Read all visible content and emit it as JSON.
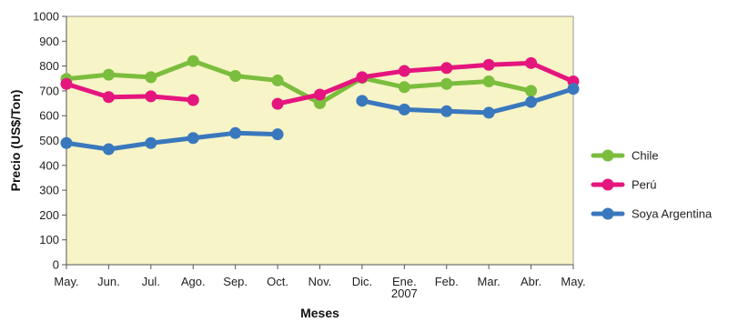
{
  "chart_data": {
    "type": "line",
    "xlabel": "Meses",
    "ylabel": "Precio (US$/Ton)",
    "ylim": [
      0,
      1000
    ],
    "ytick_step": 100,
    "grid": false,
    "plot_background": "#f7f4c7",
    "legend_position": "right",
    "categories": [
      {
        "label": "May.",
        "sub": ""
      },
      {
        "label": "Jun.",
        "sub": ""
      },
      {
        "label": "Jul.",
        "sub": ""
      },
      {
        "label": "Ago.",
        "sub": ""
      },
      {
        "label": "Sep.",
        "sub": ""
      },
      {
        "label": "Oct.",
        "sub": ""
      },
      {
        "label": "Nov.",
        "sub": ""
      },
      {
        "label": "Dic.",
        "sub": ""
      },
      {
        "label": "Ene.",
        "sub": "2007"
      },
      {
        "label": "Feb.",
        "sub": ""
      },
      {
        "label": "Mar.",
        "sub": ""
      },
      {
        "label": "Abr.",
        "sub": ""
      },
      {
        "label": "May.",
        "sub": ""
      }
    ],
    "series": [
      {
        "name": "Chile",
        "color": "#7bbd3d",
        "values": [
          748,
          765,
          755,
          820,
          760,
          742,
          650,
          752,
          715,
          728,
          738,
          700,
          null
        ]
      },
      {
        "name": "Perú",
        "color": "#e5157e",
        "values": [
          728,
          675,
          678,
          663,
          null,
          648,
          685,
          755,
          780,
          792,
          805,
          812,
          738
        ]
      },
      {
        "name": "Soya Argentina",
        "color": "#3a78bd",
        "values": [
          490,
          465,
          490,
          510,
          530,
          525,
          null,
          660,
          625,
          618,
          612,
          655,
          708
        ]
      }
    ]
  }
}
